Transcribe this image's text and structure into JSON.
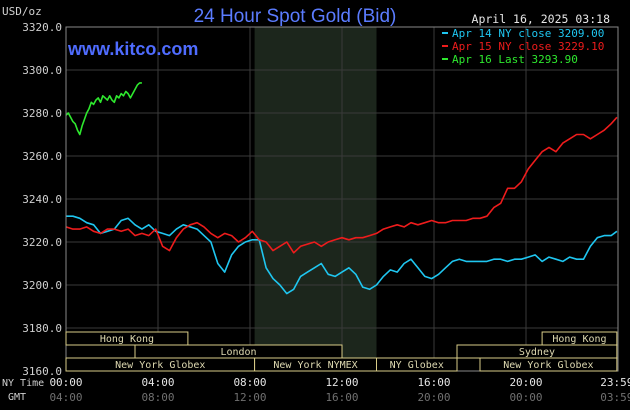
{
  "header": {
    "units": "USD/oz",
    "title": "24 Hour Spot Gold (Bid)",
    "timestamp": "April 16, 2025 03:18",
    "watermark": "www.kitco.com"
  },
  "colors": {
    "background": "#000000",
    "grid": "#3a3a3a",
    "axis_text": "#d0d0d0",
    "title": "#5b7cff",
    "watermark": "#4f6cff",
    "ny_session_shade": "#1c261c",
    "session_box_fill": "#000000",
    "session_box_border": "#d8cc88",
    "session_text": "#ddd8b0",
    "series_apr14": "#1fc6f0",
    "series_apr15": "#ee1c1c",
    "series_apr16": "#2ee82e"
  },
  "chart_data": {
    "type": "line",
    "title": "24 Hour Spot Gold (Bid)",
    "ylabel": "USD/oz",
    "xlabel": "",
    "x_unit": "hours (NY Time)",
    "xlim": [
      0,
      24
    ],
    "ylim": [
      3160,
      3320
    ],
    "y_ticks": [
      "3320.0",
      "3300.0",
      "3280.0",
      "3260.0",
      "3240.0",
      "3220.0",
      "3200.0",
      "3180.0",
      "3160.0"
    ],
    "x_ticks_ny": [
      "00:00",
      "04:00",
      "08:00",
      "12:00",
      "16:00",
      "20:00",
      "23:59"
    ],
    "x_ticks_gmt": [
      "04:00",
      "08:00",
      "12:00",
      "16:00",
      "20:00",
      "00:00",
      "03:59"
    ],
    "x_axis_label_ny": "NY Time",
    "x_axis_label_gmt": "GMT",
    "grid": true,
    "legend_position": "top-right",
    "legend": [
      "Apr 14 NY close 3209.00",
      "Apr 15 NY close 3229.10",
      "Apr 16 Last 3293.90"
    ],
    "shaded_region_hours": [
      8.2,
      13.5
    ],
    "session_rows": [
      [
        {
          "label": "Hong Kong",
          "start": 0,
          "end": 5.3
        },
        {
          "label": "Hong Kong",
          "start": 20.7,
          "end": 23.95
        }
      ],
      [
        {
          "label": "London",
          "start": 3.0,
          "end": 12.0
        },
        {
          "label": "Sydney",
          "start": 17.0,
          "end": 23.95
        }
      ],
      [
        {
          "label": "New York Globex",
          "start": 0,
          "end": 8.2
        },
        {
          "label": "New York NYMEX",
          "start": 8.2,
          "end": 13.5
        },
        {
          "label": "NY Globex",
          "start": 13.5,
          "end": 17.0
        },
        {
          "label": "New York Globex",
          "start": 18.0,
          "end": 23.95
        }
      ]
    ],
    "series": [
      {
        "name": "Apr 14 NY close 3209.00",
        "color": "#1fc6f0",
        "x": [
          0,
          0.3,
          0.6,
          0.9,
          1.2,
          1.5,
          1.8,
          2.1,
          2.4,
          2.7,
          3.0,
          3.3,
          3.6,
          3.9,
          4.2,
          4.5,
          4.8,
          5.1,
          5.4,
          5.7,
          6.0,
          6.3,
          6.6,
          6.9,
          7.2,
          7.5,
          7.8,
          8.1,
          8.4,
          8.7,
          9.0,
          9.3,
          9.6,
          9.9,
          10.2,
          10.5,
          10.8,
          11.1,
          11.4,
          11.7,
          12.0,
          12.3,
          12.6,
          12.9,
          13.2,
          13.5,
          13.8,
          14.1,
          14.4,
          14.7,
          15.0,
          15.3,
          15.6,
          15.9,
          16.2,
          16.5,
          16.8,
          17.1,
          17.4,
          17.7,
          18.0,
          18.3,
          18.6,
          18.9,
          19.2,
          19.5,
          19.8,
          20.1,
          20.4,
          20.7,
          21.0,
          21.3,
          21.6,
          21.9,
          22.2,
          22.5,
          22.8,
          23.1,
          23.4,
          23.7,
          23.95
        ],
        "y": [
          3232,
          3232,
          3231,
          3229,
          3228,
          3224,
          3225,
          3226,
          3230,
          3231,
          3228,
          3226,
          3228,
          3225,
          3224,
          3223,
          3226,
          3228,
          3227,
          3226,
          3223,
          3220,
          3210,
          3206,
          3214,
          3218,
          3220,
          3221,
          3221,
          3208,
          3203,
          3200,
          3196,
          3198,
          3204,
          3206,
          3208,
          3210,
          3205,
          3204,
          3206,
          3208,
          3205,
          3199,
          3198,
          3200,
          3204,
          3207,
          3206,
          3210,
          3212,
          3208,
          3204,
          3203,
          3205,
          3208,
          3211,
          3212,
          3211,
          3211,
          3211,
          3211,
          3212,
          3212,
          3211,
          3212,
          3212,
          3213,
          3214,
          3211,
          3213,
          3212,
          3211,
          3213,
          3212,
          3212,
          3218,
          3222,
          3223,
          3223,
          3225
        ]
      },
      {
        "name": "Apr 15 NY close 3229.10",
        "color": "#ee1c1c",
        "x": [
          0,
          0.3,
          0.6,
          0.9,
          1.2,
          1.5,
          1.8,
          2.1,
          2.4,
          2.7,
          3.0,
          3.3,
          3.6,
          3.9,
          4.2,
          4.5,
          4.8,
          5.1,
          5.4,
          5.7,
          6.0,
          6.3,
          6.6,
          6.9,
          7.2,
          7.5,
          7.8,
          8.1,
          8.4,
          8.7,
          9.0,
          9.3,
          9.6,
          9.9,
          10.2,
          10.5,
          10.8,
          11.1,
          11.4,
          11.7,
          12.0,
          12.3,
          12.6,
          12.9,
          13.2,
          13.5,
          13.8,
          14.1,
          14.4,
          14.7,
          15.0,
          15.3,
          15.6,
          15.9,
          16.2,
          16.5,
          16.8,
          17.1,
          17.4,
          17.7,
          18.0,
          18.3,
          18.6,
          18.9,
          19.2,
          19.5,
          19.8,
          20.1,
          20.4,
          20.7,
          21.0,
          21.3,
          21.6,
          21.9,
          22.2,
          22.5,
          22.8,
          23.1,
          23.4,
          23.7,
          23.95
        ],
        "y": [
          3227,
          3226,
          3226,
          3227,
          3225,
          3224,
          3226,
          3226,
          3225,
          3226,
          3223,
          3224,
          3223,
          3226,
          3218,
          3216,
          3222,
          3226,
          3228,
          3229,
          3227,
          3224,
          3222,
          3224,
          3223,
          3220,
          3222,
          3225,
          3221,
          3220,
          3216,
          3218,
          3220,
          3215,
          3218,
          3219,
          3220,
          3218,
          3220,
          3221,
          3222,
          3221,
          3222,
          3222,
          3223,
          3224,
          3226,
          3227,
          3228,
          3227,
          3229,
          3228,
          3229,
          3230,
          3229,
          3229,
          3230,
          3230,
          3230,
          3231,
          3231,
          3232,
          3236,
          3238,
          3245,
          3245,
          3248,
          3254,
          3258,
          3262,
          3264,
          3262,
          3266,
          3268,
          3270,
          3270,
          3268,
          3270,
          3272,
          3275,
          3278
        ]
      },
      {
        "name": "Apr 16 Last 3293.90",
        "color": "#2ee82e",
        "x": [
          0,
          0.1,
          0.2,
          0.3,
          0.4,
          0.5,
          0.6,
          0.7,
          0.8,
          0.9,
          1.0,
          1.1,
          1.2,
          1.3,
          1.4,
          1.5,
          1.6,
          1.7,
          1.8,
          1.9,
          2.0,
          2.1,
          2.2,
          2.3,
          2.4,
          2.5,
          2.6,
          2.7,
          2.8,
          2.9,
          3.0,
          3.1,
          3.2,
          3.3
        ],
        "y": [
          3279,
          3280,
          3278,
          3276,
          3275,
          3272,
          3270,
          3274,
          3277,
          3280,
          3282,
          3285,
          3284,
          3286,
          3287,
          3285,
          3288,
          3287,
          3286,
          3288,
          3286,
          3285,
          3288,
          3287,
          3289,
          3288,
          3290,
          3289,
          3287,
          3289,
          3291,
          3293,
          3294,
          3294
        ]
      }
    ]
  }
}
